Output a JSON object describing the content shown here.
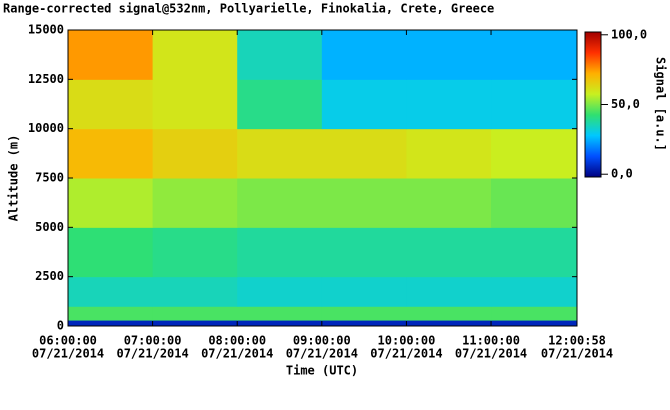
{
  "chart_data": {
    "type": "heatmap",
    "title": "Range-corrected signal@532nm, Pollyarielle, Finokalia, Crete, Greece",
    "x_label": "Time (UTC)",
    "y_label": "Altitude (m)",
    "colorbar_label": "Signal [a.u.]",
    "x": [
      6,
      7,
      8,
      9,
      10,
      11,
      12.0161
    ],
    "y": [
      0,
      300,
      1000,
      2500,
      5000,
      7500,
      10000,
      12500,
      15000
    ],
    "z": [
      [
        5,
        5,
        5,
        5,
        5,
        5
      ],
      [
        45,
        45,
        45,
        45,
        45,
        45
      ],
      [
        35,
        35,
        33,
        33,
        33,
        33
      ],
      [
        42,
        40,
        38,
        38,
        38,
        38
      ],
      [
        55,
        52,
        50,
        50,
        50,
        48
      ],
      [
        70,
        65,
        62,
        62,
        60,
        58
      ],
      [
        62,
        60,
        40,
        30,
        30,
        30
      ],
      [
        75,
        60,
        35,
        25,
        25,
        25
      ]
    ],
    "xlim": [
      6,
      12.0161
    ],
    "xticks": [
      {
        "value": 6,
        "label": "06:00:00",
        "sublabel": "07/21/2014"
      },
      {
        "value": 7,
        "label": "07:00:00",
        "sublabel": "07/21/2014"
      },
      {
        "value": 8,
        "label": "08:00:00",
        "sublabel": "07/21/2014"
      },
      {
        "value": 9,
        "label": "09:00:00",
        "sublabel": "07/21/2014"
      },
      {
        "value": 10,
        "label": "10:00:00",
        "sublabel": "07/21/2014"
      },
      {
        "value": 11,
        "label": "11:00:00",
        "sublabel": "07/21/2014"
      },
      {
        "value": 12.0161,
        "label": "12:00:58",
        "sublabel": "07/21/2014"
      }
    ],
    "ylim": [
      0,
      15000
    ],
    "yticks": [
      0,
      2500,
      5000,
      7500,
      10000,
      12500,
      15000
    ],
    "clim": [
      -2,
      102
    ],
    "cticks": [
      {
        "value": 0,
        "label": "0,0"
      },
      {
        "value": 50,
        "label": "50,0"
      },
      {
        "value": 100,
        "label": "100,0"
      }
    ],
    "colormap": [
      "#000080",
      "#0050ff",
      "#00c8ff",
      "#30e070",
      "#c8f020",
      "#ffb000",
      "#ff3000",
      "#a00000"
    ]
  }
}
